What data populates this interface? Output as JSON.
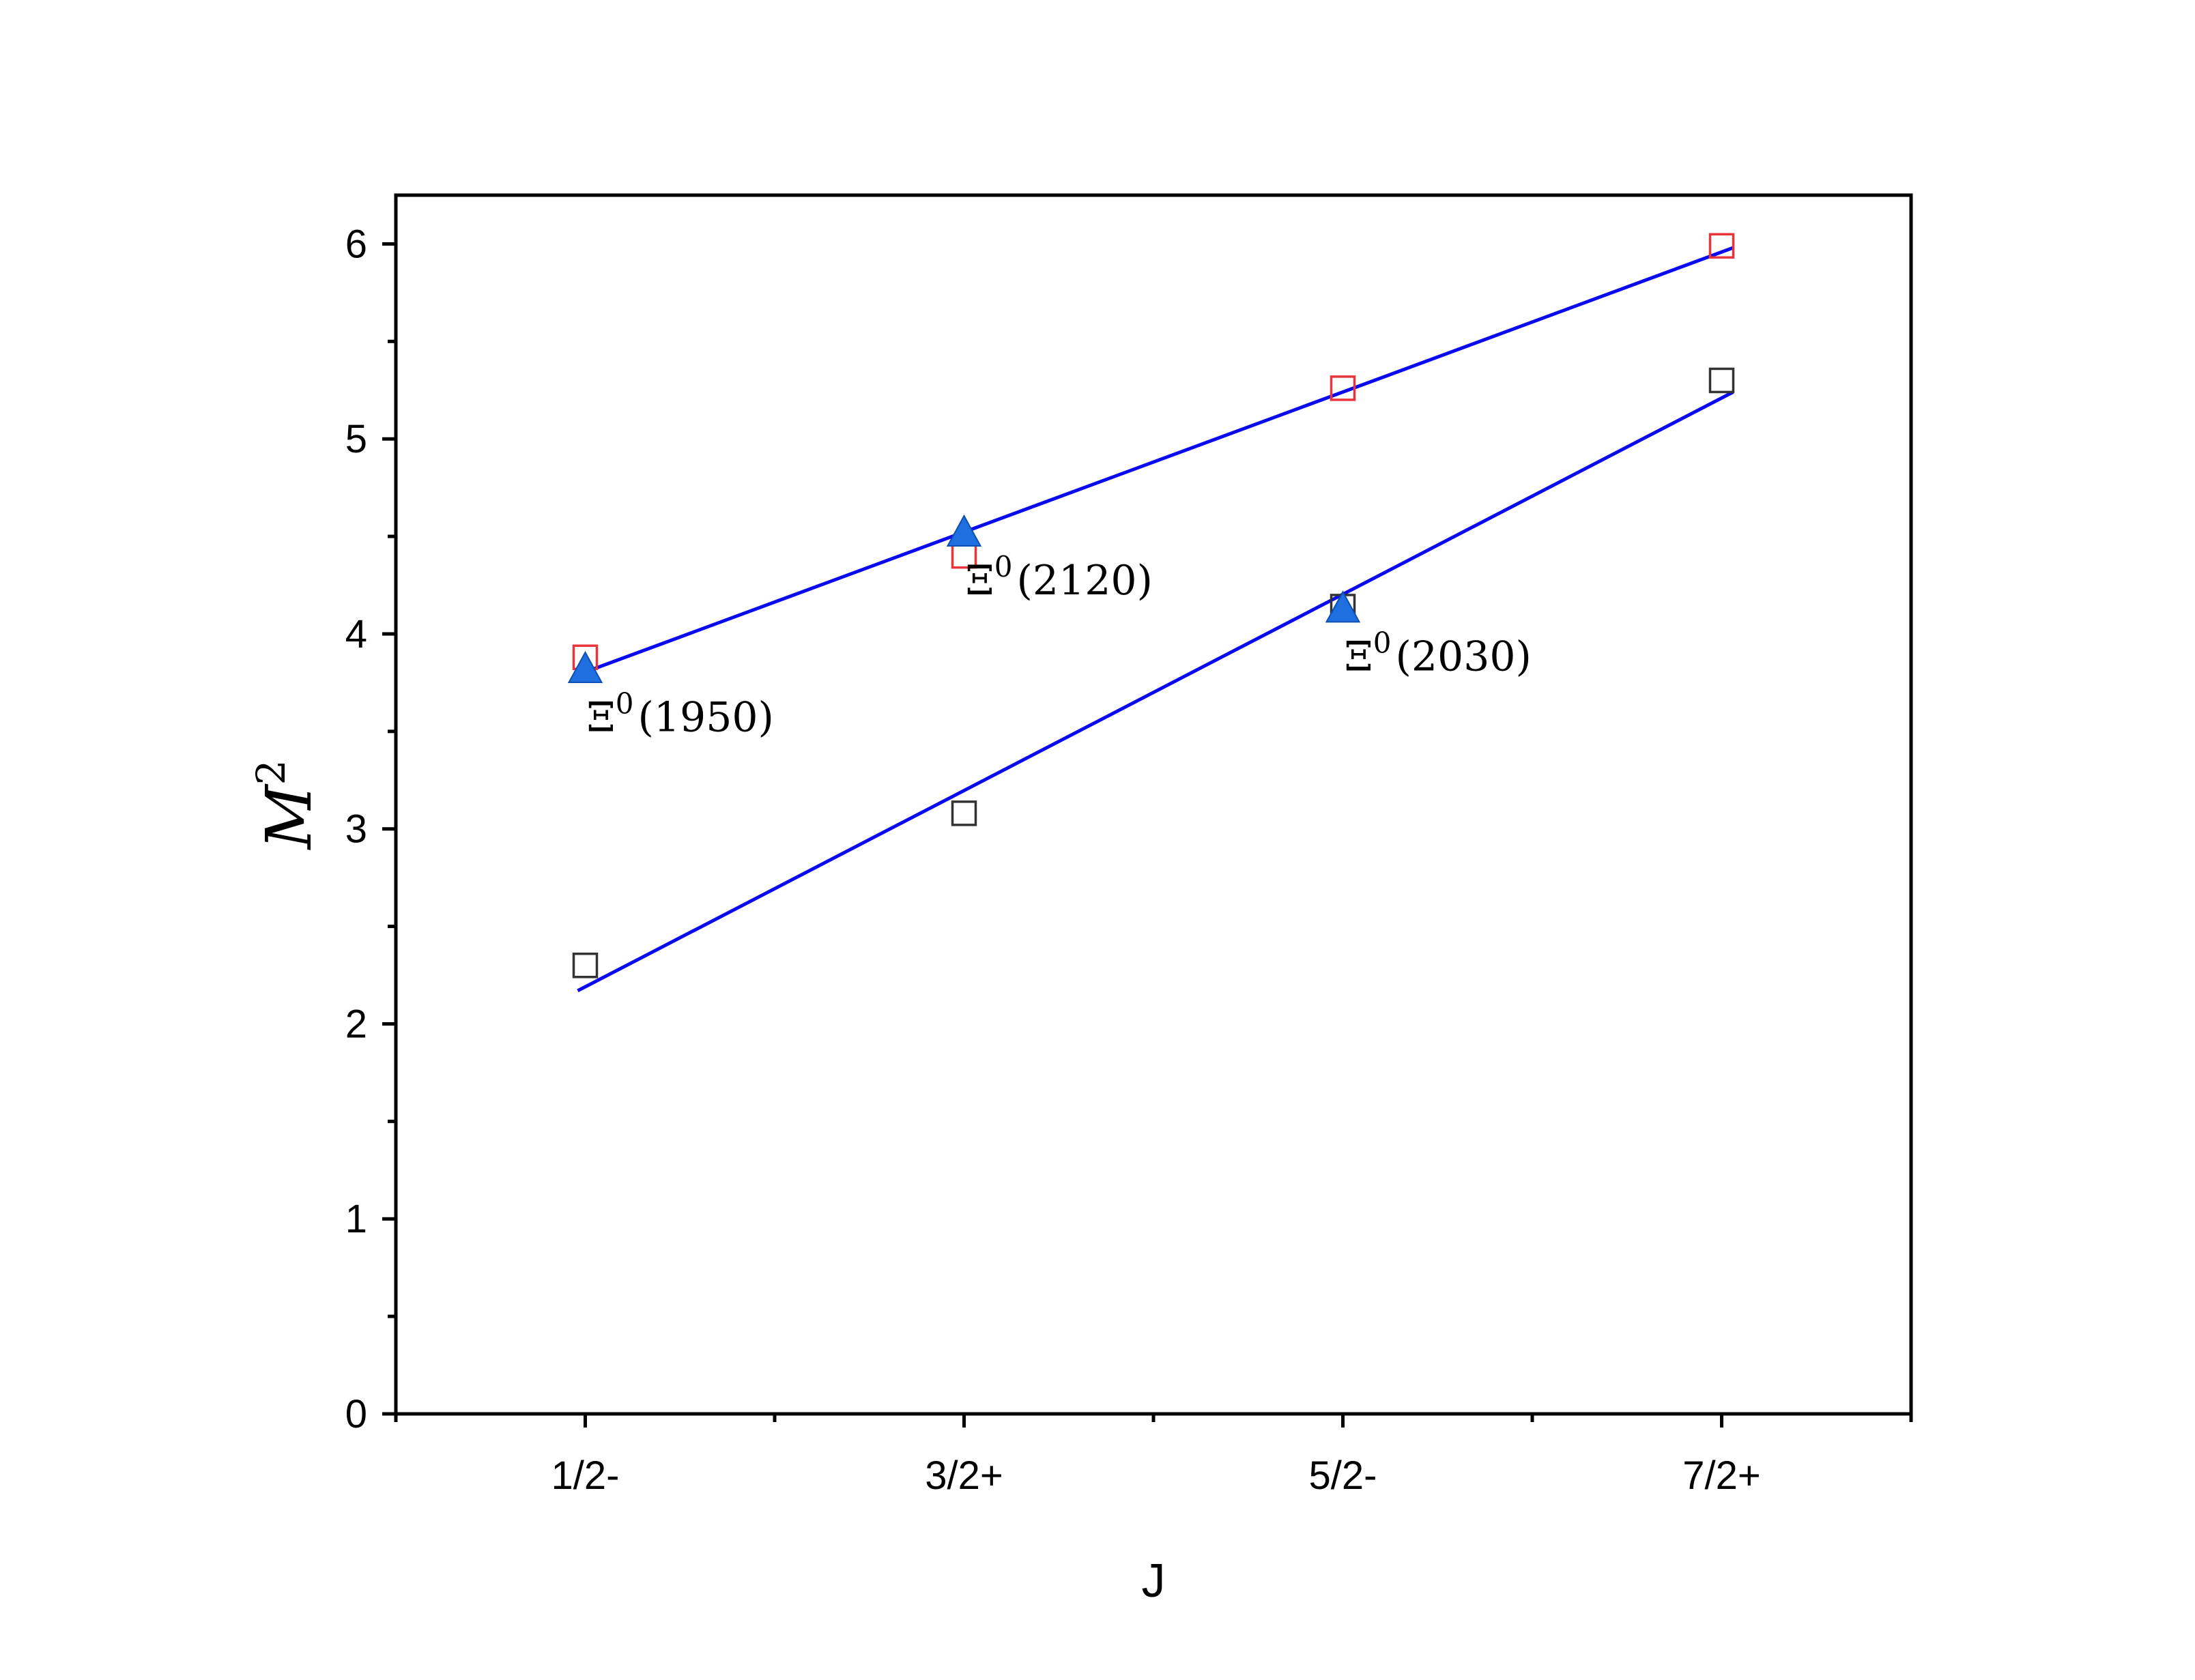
{
  "chart_data": {
    "type": "scatter",
    "title": "",
    "xlabel": "J",
    "ylabel": "M",
    "ylabel_superscript": "2",
    "categories": [
      "1/2-",
      "3/2+",
      "5/2-",
      "7/2+"
    ],
    "x_positions": [
      1,
      2,
      3,
      4
    ],
    "xlim": [
      0.5,
      4.5
    ],
    "ylim": [
      0,
      6.25
    ],
    "yticks": [
      0,
      1,
      2,
      3,
      4,
      5,
      6
    ],
    "grid": false,
    "legend": "none",
    "series": [
      {
        "marker": "open-square",
        "color": "#e8343b",
        "values": [
          3.88,
          4.4,
          5.26,
          5.99
        ]
      },
      {
        "marker": "open-square",
        "color": "#333333",
        "values": [
          2.3,
          3.08,
          4.14,
          5.3
        ]
      },
      {
        "marker": "filled-triangle",
        "color": "#1f6fe0",
        "points": [
          {
            "x": 1,
            "y": 3.81
          },
          {
            "x": 2,
            "y": 4.51
          },
          {
            "x": 3,
            "y": 4.12
          }
        ]
      }
    ],
    "fit_lines": [
      {
        "color": "#0a0aee",
        "x": [
          0.98,
          4.03
        ],
        "y": [
          3.79,
          5.98
        ]
      },
      {
        "color": "#0a0aee",
        "x": [
          0.98,
          4.03
        ],
        "y": [
          2.17,
          5.24
        ]
      }
    ],
    "annotations": [
      {
        "base": "Ξ",
        "sup": "0",
        "rest": "(1950)",
        "x": 1,
        "y": 3.81
      },
      {
        "base": "Ξ",
        "sup": "0",
        "rest": "(2120)",
        "x": 2,
        "y": 4.51
      },
      {
        "base": "Ξ",
        "sup": "0",
        "rest": "(2030)",
        "x": 3,
        "y": 4.12
      }
    ]
  }
}
